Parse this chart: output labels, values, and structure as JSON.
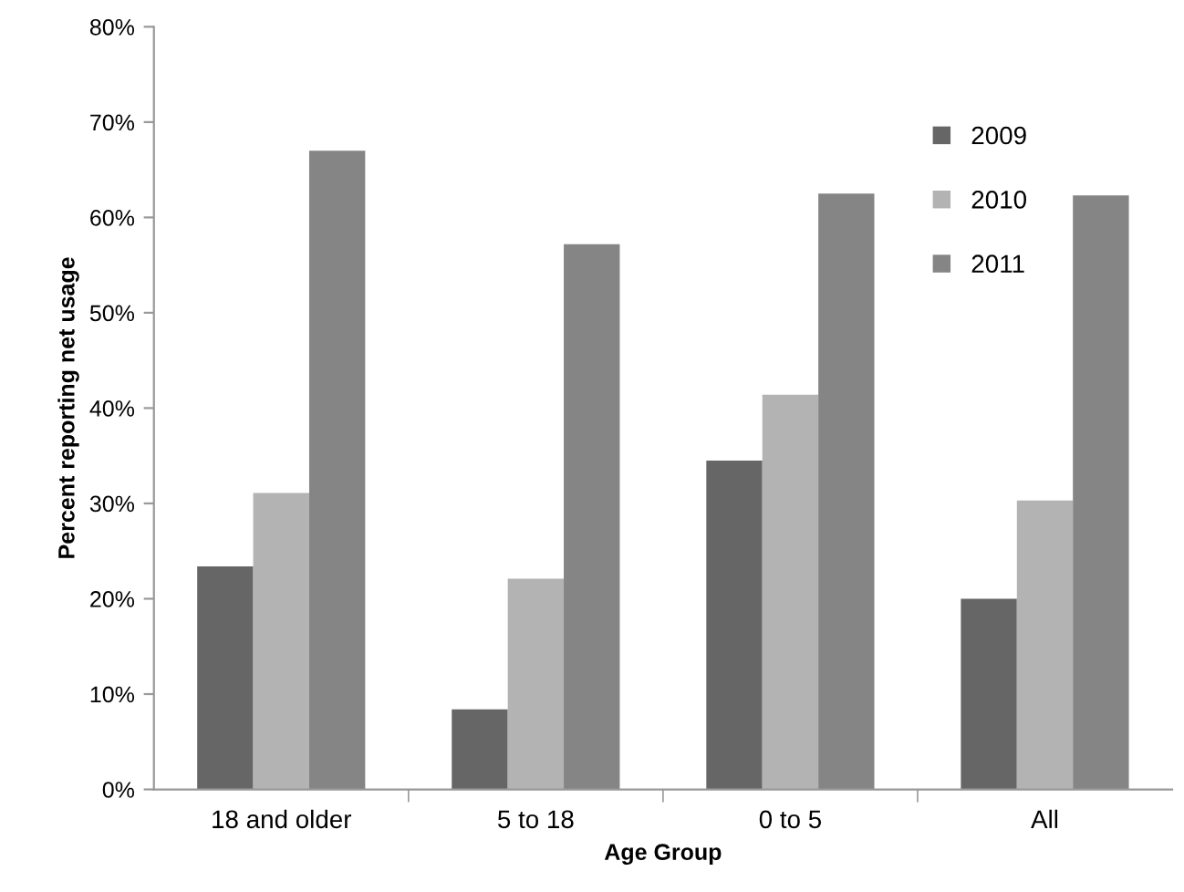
{
  "chart_data": {
    "type": "bar",
    "xlabel": "Age Group",
    "ylabel": "Percent reporting net usage",
    "categories": [
      "18 and older",
      "5 to 18",
      "0 to 5",
      "All"
    ],
    "series": [
      {
        "name": "2009",
        "color": "#666666",
        "values": [
          23.4,
          8.4,
          34.5,
          20.0
        ]
      },
      {
        "name": "2010",
        "color": "#b3b3b3",
        "values": [
          31.1,
          22.1,
          41.4,
          30.3
        ]
      },
      {
        "name": "2011",
        "color": "#858585",
        "values": [
          67.0,
          57.2,
          62.5,
          62.3
        ]
      }
    ],
    "ylim": [
      0,
      80
    ],
    "yticks": [
      {
        "value": 0,
        "label": "0%"
      },
      {
        "value": 10,
        "label": "10%"
      },
      {
        "value": 20,
        "label": "20%"
      },
      {
        "value": 30,
        "label": "30%"
      },
      {
        "value": 40,
        "label": "40%"
      },
      {
        "value": 50,
        "label": "50%"
      },
      {
        "value": 60,
        "label": "60%"
      },
      {
        "value": 70,
        "label": "70%"
      },
      {
        "value": 80,
        "label": "80%"
      }
    ],
    "grid": false,
    "legend": "top right"
  }
}
